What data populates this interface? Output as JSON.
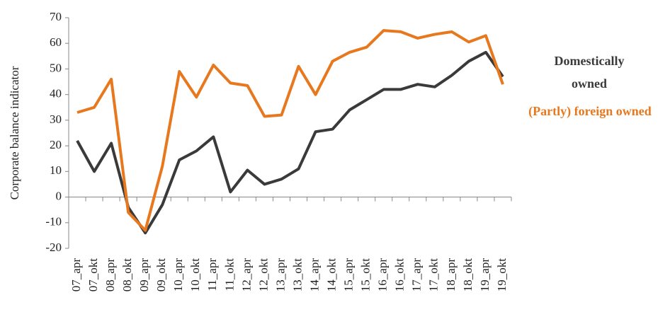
{
  "chart_data": {
    "type": "line",
    "y_label": "Corporate balance indicator",
    "categories": [
      "07_apr",
      "07_okt",
      "08_apr",
      "08_okt",
      "09_apr",
      "09_okt",
      "10_apr",
      "10_okt",
      "11_apr",
      "11_okt",
      "12_apr",
      "12_okt",
      "13_apr",
      "13_okt",
      "14_apr",
      "14_okt",
      "15_apr",
      "15_okt",
      "16_apr",
      "16_okt",
      "17_apr",
      "17_okt",
      "18_apr",
      "18_okt",
      "19_apr",
      "19_okt"
    ],
    "series": [
      {
        "name": "Domestically owned",
        "color": "#3a3a3a",
        "values": [
          22,
          10,
          21,
          -4,
          -14,
          -3,
          14.5,
          18,
          23.5,
          2,
          10.5,
          5,
          7,
          11,
          25.5,
          26.5,
          34,
          38,
          42,
          42,
          44,
          43,
          47.5,
          53,
          56.5,
          47
        ]
      },
      {
        "name": "(Partly) foreign owned",
        "color": "#e8781e",
        "values": [
          33,
          35,
          46,
          -6,
          -13,
          12,
          49,
          39,
          51.5,
          44.5,
          43.5,
          31.5,
          32,
          51,
          40,
          53,
          56.5,
          58.5,
          65,
          64.5,
          62,
          63.5,
          64.5,
          60.5,
          63,
          44
        ]
      }
    ],
    "ylim": [
      -20,
      70
    ],
    "yticks": [
      -20,
      -10,
      0,
      10,
      20,
      30,
      40,
      50,
      60,
      70
    ],
    "grid": false
  }
}
